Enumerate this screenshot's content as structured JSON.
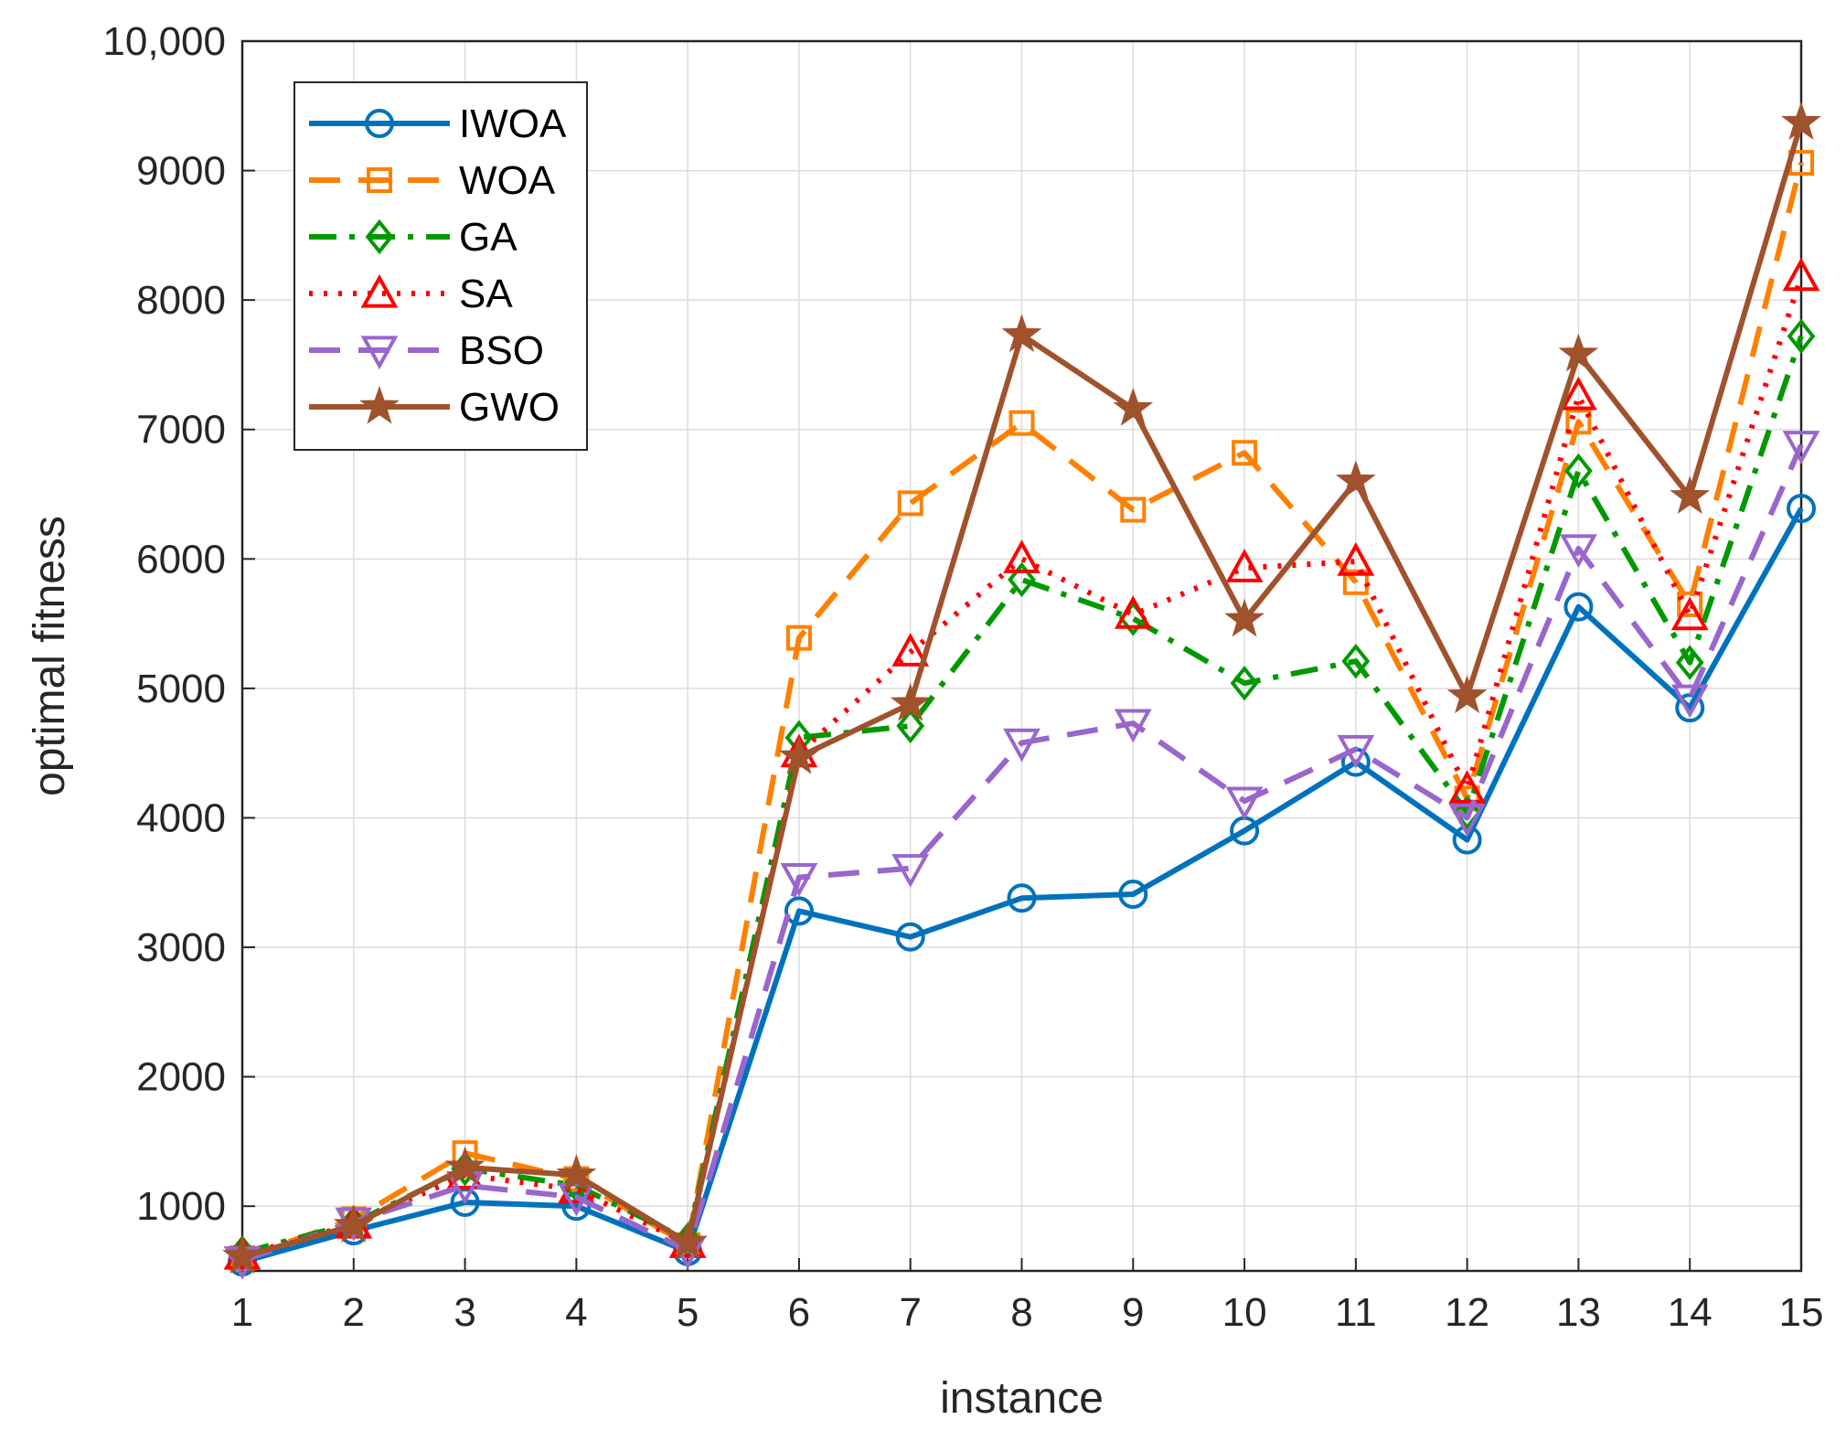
{
  "chart_data": {
    "type": "line",
    "title": "",
    "xlabel": "instance",
    "ylabel": "optimal fitness",
    "xlim": [
      1,
      15
    ],
    "ylim": [
      500,
      10000
    ],
    "grid": true,
    "legend_position": "top-left",
    "x": [
      1,
      2,
      3,
      4,
      5,
      6,
      7,
      8,
      9,
      10,
      11,
      12,
      13,
      14,
      15
    ],
    "x_tick_labels": [
      "1",
      "2",
      "3",
      "4",
      "5",
      "6",
      "7",
      "8",
      "9",
      "10",
      "11",
      "12",
      "13",
      "14",
      "15"
    ],
    "y_ticks": [
      1000,
      2000,
      3000,
      4000,
      5000,
      6000,
      7000,
      8000,
      9000,
      10000
    ],
    "y_tick_labels": [
      "1000",
      "2000",
      "3000",
      "4000",
      "5000",
      "6000",
      "7000",
      "8000",
      "9000",
      "10,000"
    ],
    "series": [
      {
        "name": "IWOA",
        "color": "#0072BD",
        "marker": "circle",
        "dash": "solid",
        "values": [
          570,
          810,
          1030,
          1000,
          650,
          3280,
          3080,
          3380,
          3410,
          3900,
          4430,
          3830,
          5630,
          4850,
          6390
        ]
      },
      {
        "name": "WOA",
        "color": "#FF8000",
        "marker": "square",
        "dash": "dashed",
        "values": [
          600,
          900,
          1410,
          1210,
          700,
          5390,
          6430,
          7050,
          6380,
          6820,
          5820,
          4150,
          7060,
          5650,
          9060
        ]
      },
      {
        "name": "GA",
        "color": "#009900",
        "marker": "diamond",
        "dash": "dashdot",
        "values": [
          640,
          870,
          1290,
          1160,
          740,
          4620,
          4710,
          5840,
          5540,
          5040,
          5210,
          4040,
          6680,
          5200,
          7720
        ]
      },
      {
        "name": "SA",
        "color": "#FF0000",
        "marker": "triangle-up",
        "dash": "dotted",
        "values": [
          620,
          860,
          1240,
          1130,
          710,
          4500,
          5280,
          6000,
          5570,
          5930,
          5980,
          4220,
          7260,
          5560,
          8180
        ]
      },
      {
        "name": "BSO",
        "color": "#9966CC",
        "marker": "triangle-down",
        "dash": "dashed",
        "values": [
          580,
          880,
          1160,
          1070,
          660,
          3540,
          3610,
          4580,
          4730,
          4130,
          4530,
          4000,
          6080,
          4920,
          6880
        ]
      },
      {
        "name": "GWO",
        "color": "#A0522D",
        "marker": "star",
        "dash": "solid",
        "values": [
          610,
          850,
          1300,
          1240,
          720,
          4470,
          4880,
          7730,
          7160,
          5530,
          6600,
          4940,
          7580,
          6480,
          9370
        ]
      }
    ]
  }
}
